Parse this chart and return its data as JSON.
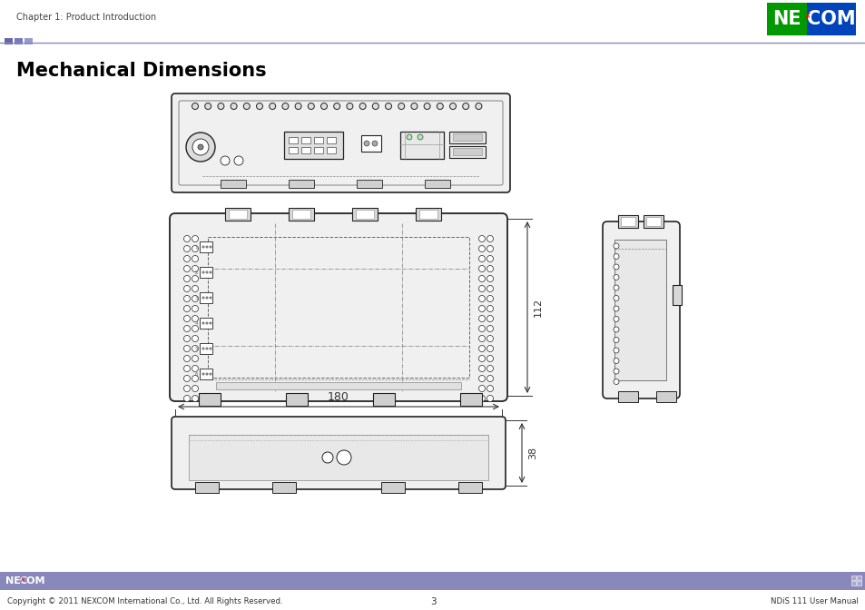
{
  "title": "Mechanical Dimensions",
  "header_text": "Chapter 1: Product Introduction",
  "footer_left": "Copyright © 2011 NEXCOM International Co., Ltd. All Rights Reserved.",
  "footer_center": "3",
  "footer_right": "NDiS 111 User Manual",
  "dim_180": "180",
  "dim_112": "112",
  "dim_38": "38",
  "bg_color": "#ffffff",
  "header_bar_color": "#8888bb",
  "footer_bar_color": "#8888bb",
  "line_color": "#222222",
  "dim_line_color": "#333333",
  "header_sq_colors": [
    "#6666aa",
    "#7777bb",
    "#9999cc"
  ],
  "nexcom_green": "#009900",
  "nexcom_blue": "#0044bb"
}
